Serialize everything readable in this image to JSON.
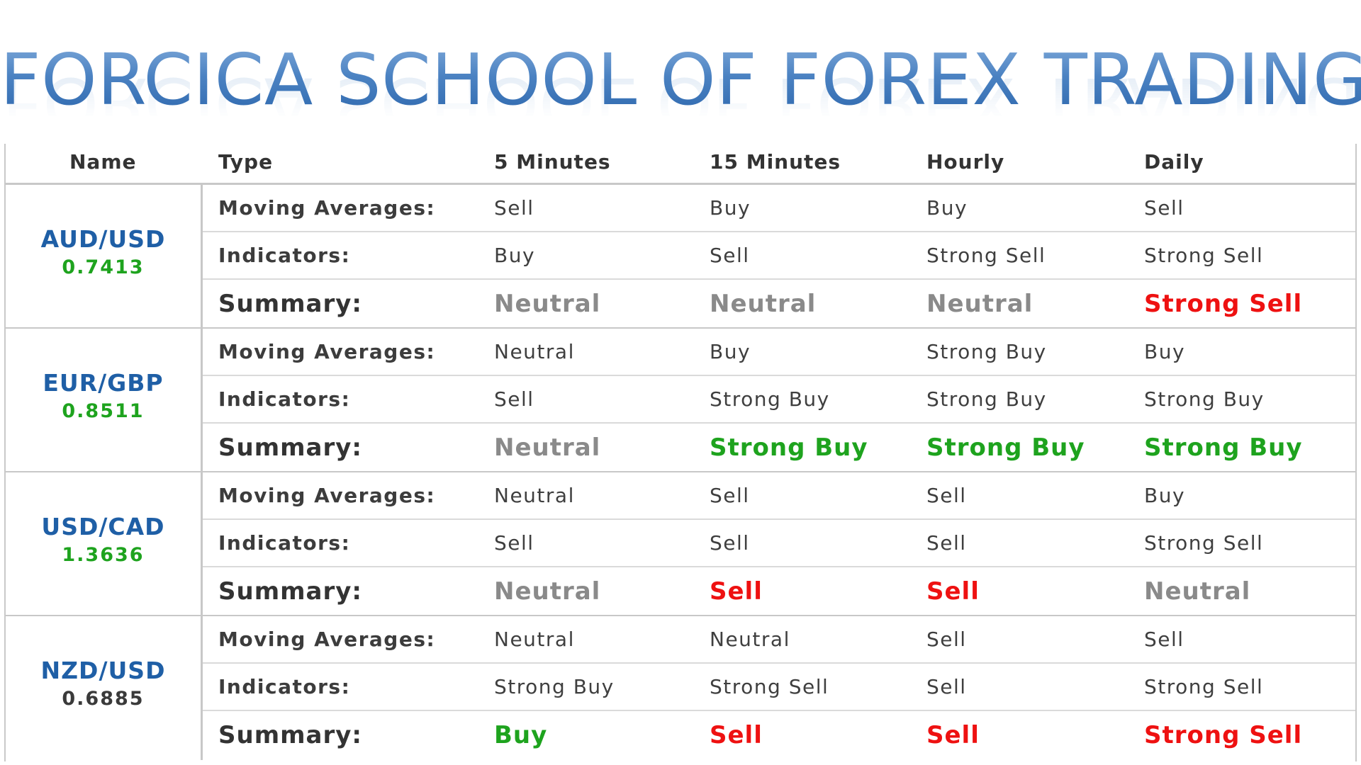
{
  "title": "FORCICA SCHOOL OF FOREX TRADING",
  "colors": {
    "title_blue": "#4f87c4",
    "pair_blue": "#1f5fa6",
    "price_up_green": "#1ea31e",
    "price_dark": "#3a3a3a",
    "neutral_gray": "#8a8a8a",
    "sell_red": "#ee1111",
    "buy_green": "#1ea31e",
    "text_dark": "#3f3f3f"
  },
  "table": {
    "headers": {
      "name": "Name",
      "type": "Type",
      "m5": "5 Minutes",
      "m15": "15 Minutes",
      "hourly": "Hourly",
      "daily": "Daily"
    },
    "groups": [
      {
        "pair": "AUD/USD",
        "price": "0.7413",
        "price_color": "#1ea31e",
        "rows": [
          {
            "type": "Moving Averages:",
            "m5": "Sell",
            "m15": "Buy",
            "hourly": "Buy",
            "daily": "Sell"
          },
          {
            "type": "Indicators:",
            "m5": "Buy",
            "m15": "Sell",
            "hourly": "Strong Sell",
            "daily": "Strong Sell"
          },
          {
            "type": "Summary:",
            "m5": "Neutral",
            "m15": "Neutral",
            "hourly": "Neutral",
            "daily": "Strong Sell",
            "colors": {
              "m5": "#8a8a8a",
              "m15": "#8a8a8a",
              "hourly": "#8a8a8a",
              "daily": "#ee1111"
            }
          }
        ]
      },
      {
        "pair": "EUR/GBP",
        "price": "0.8511",
        "price_color": "#1ea31e",
        "rows": [
          {
            "type": "Moving Averages:",
            "m5": "Neutral",
            "m15": "Buy",
            "hourly": "Strong Buy",
            "daily": "Buy"
          },
          {
            "type": "Indicators:",
            "m5": "Sell",
            "m15": "Strong Buy",
            "hourly": "Strong Buy",
            "daily": "Strong Buy"
          },
          {
            "type": "Summary:",
            "m5": "Neutral",
            "m15": "Strong Buy",
            "hourly": "Strong Buy",
            "daily": "Strong Buy",
            "colors": {
              "m5": "#8a8a8a",
              "m15": "#1ea31e",
              "hourly": "#1ea31e",
              "daily": "#1ea31e"
            }
          }
        ]
      },
      {
        "pair": "USD/CAD",
        "price": "1.3636",
        "price_color": "#1ea31e",
        "rows": [
          {
            "type": "Moving Averages:",
            "m5": "Neutral",
            "m15": "Sell",
            "hourly": "Sell",
            "daily": "Buy"
          },
          {
            "type": "Indicators:",
            "m5": "Sell",
            "m15": "Sell",
            "hourly": "Sell",
            "daily": "Strong Sell"
          },
          {
            "type": "Summary:",
            "m5": "Neutral",
            "m15": "Sell",
            "hourly": "Sell",
            "daily": "Neutral",
            "colors": {
              "m5": "#8a8a8a",
              "m15": "#ee1111",
              "hourly": "#ee1111",
              "daily": "#8a8a8a"
            }
          }
        ]
      },
      {
        "pair": "NZD/USD",
        "price": "0.6885",
        "price_color": "#3a3a3a",
        "rows": [
          {
            "type": "Moving Averages:",
            "m5": "Neutral",
            "m15": "Neutral",
            "hourly": "Sell",
            "daily": "Sell"
          },
          {
            "type": "Indicators:",
            "m5": "Strong Buy",
            "m15": "Strong Sell",
            "hourly": "Sell",
            "daily": "Strong Sell"
          },
          {
            "type": "Summary:",
            "m5": "Buy",
            "m15": "Sell",
            "hourly": "Sell",
            "daily": "Strong Sell",
            "colors": {
              "m5": "#1ea31e",
              "m15": "#ee1111",
              "hourly": "#ee1111",
              "daily": "#ee1111"
            }
          }
        ]
      }
    ]
  }
}
